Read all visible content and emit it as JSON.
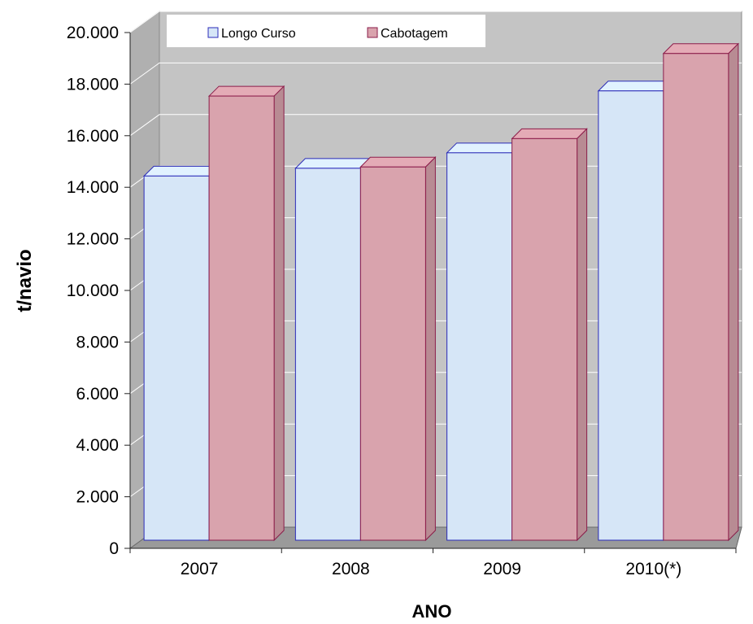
{
  "chart_data": {
    "type": "bar",
    "title": "",
    "xlabel": "ANO",
    "ylabel": "t/navio",
    "categories": [
      "2007",
      "2008",
      "2009",
      "2010(*)"
    ],
    "series": [
      {
        "name": "Longo Curso",
        "values": [
          14500,
          14800,
          15400,
          17800
        ],
        "color": "#d6e6f7",
        "edge": "#2b2bb8"
      },
      {
        "name": "Cabotagem",
        "values": [
          17600,
          14850,
          15950,
          19250
        ],
        "color": "#d9a3ad",
        "edge": "#8b1c4a"
      }
    ],
    "ylim": [
      0,
      20000
    ],
    "yticks": [
      {
        "value": 0,
        "label": "0"
      },
      {
        "value": 2000,
        "label": "2.000"
      },
      {
        "value": 4000,
        "label": "4.000"
      },
      {
        "value": 6000,
        "label": "6.000"
      },
      {
        "value": 8000,
        "label": "8.000"
      },
      {
        "value": 10000,
        "label": "10.000"
      },
      {
        "value": 12000,
        "label": "12.000"
      },
      {
        "value": 14000,
        "label": "14.000"
      },
      {
        "value": 16000,
        "label": "16.000"
      },
      {
        "value": 18000,
        "label": "18.000"
      },
      {
        "value": 20000,
        "label": "20.000"
      }
    ],
    "grid": true,
    "legend": "top",
    "wall_color": "#c4c4c4",
    "floor_color": "#9a9a9a"
  }
}
